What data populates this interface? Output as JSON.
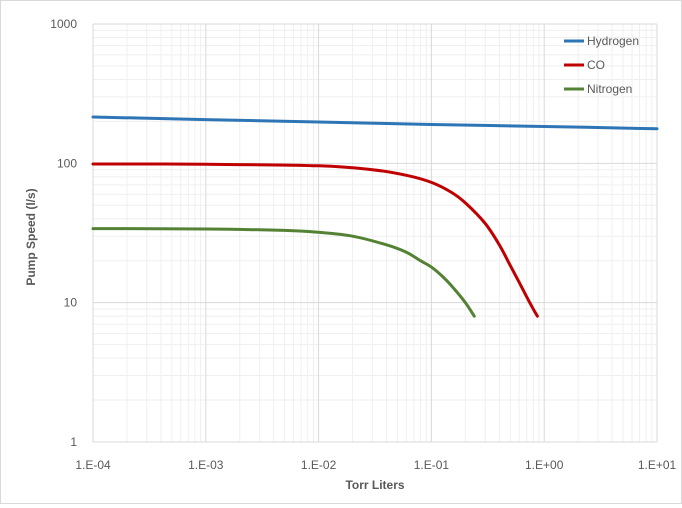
{
  "chart_data": {
    "type": "line",
    "title": "",
    "xlabel": "Torr Liters",
    "ylabel": "Pump Speed (l/s)",
    "x_scale": "log",
    "y_scale": "log",
    "xlim": [
      0.0001,
      10
    ],
    "ylim": [
      1,
      1000
    ],
    "x_tick_labels": [
      "1.E-04",
      "1.E-03",
      "1.E-02",
      "1.E-01",
      "1.E+00",
      "1.E+01"
    ],
    "y_tick_labels": [
      "1",
      "10",
      "100",
      "1000"
    ],
    "grid": "major and minor",
    "legend_position": "top-right",
    "series": [
      {
        "name": "Hydrogen",
        "color": "#2e75b6",
        "x": [
          0.0001,
          0.001,
          0.01,
          0.1,
          1,
          10
        ],
        "y": [
          215,
          206,
          198,
          190,
          184,
          177
        ]
      },
      {
        "name": "CO",
        "color": "#c00000",
        "x": [
          0.0001,
          0.001,
          0.01,
          0.03,
          0.06,
          0.1,
          0.15,
          0.2,
          0.3,
          0.4,
          0.5,
          0.6,
          0.7,
          0.8,
          0.87
        ],
        "y": [
          99,
          98.5,
          96,
          90,
          82,
          73,
          62,
          52,
          37,
          26,
          18.5,
          14,
          11,
          9,
          8
        ]
      },
      {
        "name": "Nitrogen",
        "color": "#548235",
        "x": [
          0.0001,
          0.001,
          0.005,
          0.01,
          0.02,
          0.04,
          0.06,
          0.08,
          0.1,
          0.13,
          0.16,
          0.2,
          0.24
        ],
        "y": [
          34,
          33.8,
          33,
          32,
          30,
          26,
          23,
          20,
          18,
          15,
          12.5,
          10,
          8
        ]
      }
    ]
  }
}
